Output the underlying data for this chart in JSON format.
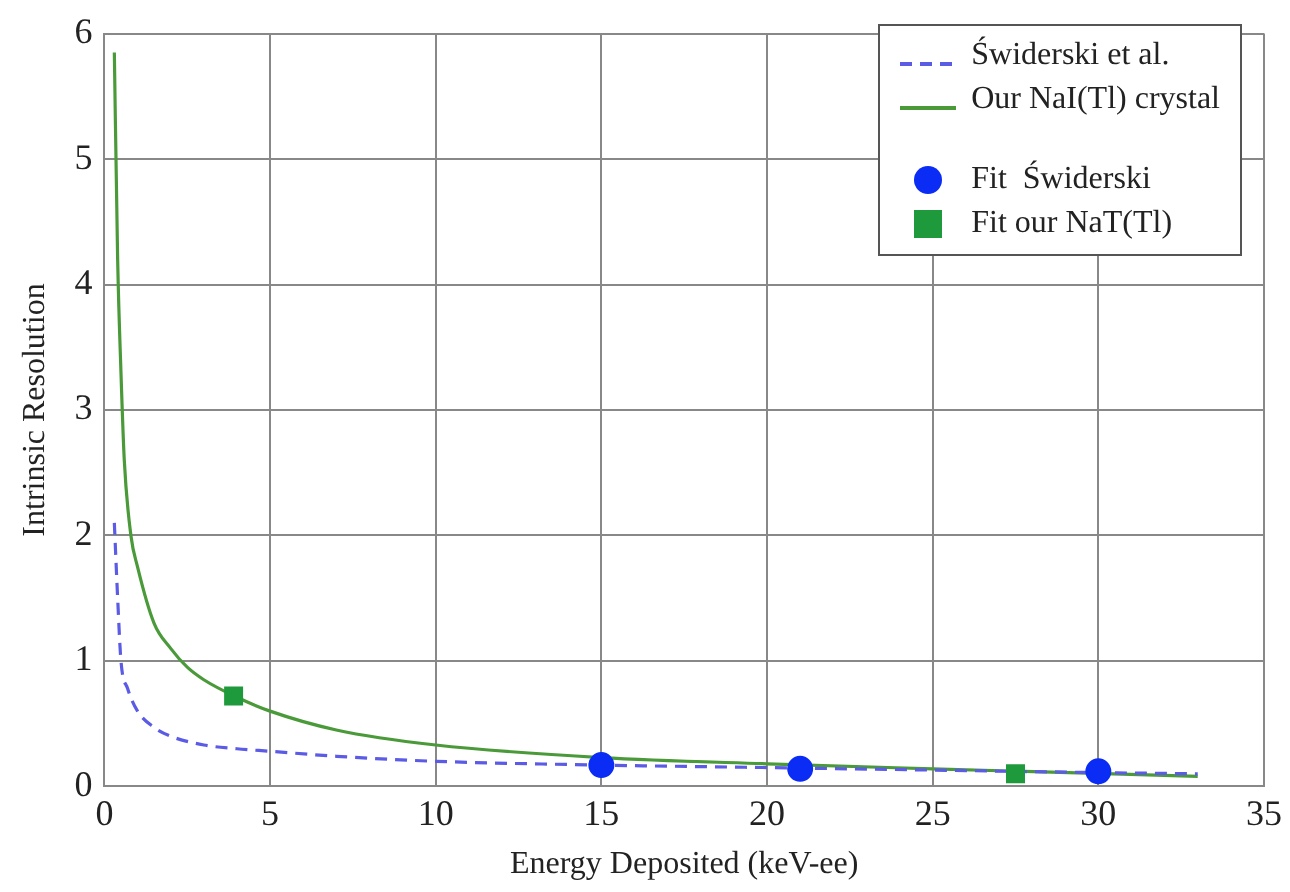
{
  "chart_data": {
    "type": "line",
    "xlabel": "Energy Deposited (keV-ee)",
    "ylabel": "Intrinsic Resolution",
    "xlim": [
      0,
      35
    ],
    "xticks": [
      0,
      5,
      10,
      15,
      20,
      25,
      30,
      35
    ],
    "ylim": [
      0,
      6
    ],
    "yticks": [
      0,
      1,
      2,
      3,
      4,
      5,
      6
    ],
    "grid": true,
    "legend": "top right",
    "series": [
      {
        "name": "Świderski et al.",
        "type": "line",
        "line_style": "dashed",
        "marker": "none",
        "color": "#5b5be6",
        "x": [
          0.3,
          0.4,
          0.5,
          0.7,
          1,
          1.5,
          2,
          3,
          4,
          5,
          7,
          10,
          15,
          20,
          25,
          30,
          33
        ],
        "values": [
          2.1,
          1.5,
          1.0,
          0.78,
          0.6,
          0.47,
          0.4,
          0.33,
          0.3,
          0.28,
          0.24,
          0.2,
          0.17,
          0.15,
          0.13,
          0.11,
          0.1
        ]
      },
      {
        "name": "Our NaI(Tl) crystal",
        "type": "line",
        "line_style": "solid",
        "marker": "none",
        "color": "#4a9a3a",
        "x": [
          0.3,
          0.4,
          0.5,
          0.6,
          0.8,
          1,
          1.5,
          2,
          2.5,
          3,
          4,
          5,
          7,
          10,
          15,
          20,
          25,
          33
        ],
        "values": [
          5.85,
          4.2,
          3.3,
          2.6,
          2.0,
          1.75,
          1.3,
          1.1,
          0.95,
          0.85,
          0.71,
          0.6,
          0.45,
          0.33,
          0.23,
          0.18,
          0.14,
          0.08
        ]
      },
      {
        "name": "Fit  Świderski",
        "type": "scatter",
        "marker": "circle",
        "color": "#0a2cf5",
        "x": [
          15,
          21,
          30
        ],
        "values": [
          0.17,
          0.14,
          0.12
        ]
      },
      {
        "name": "Fit our NaT(Tl)",
        "type": "scatter",
        "marker": "square",
        "color": "#1e9a3c",
        "x": [
          3.9,
          27.5
        ],
        "values": [
          0.72,
          0.1
        ]
      }
    ]
  }
}
